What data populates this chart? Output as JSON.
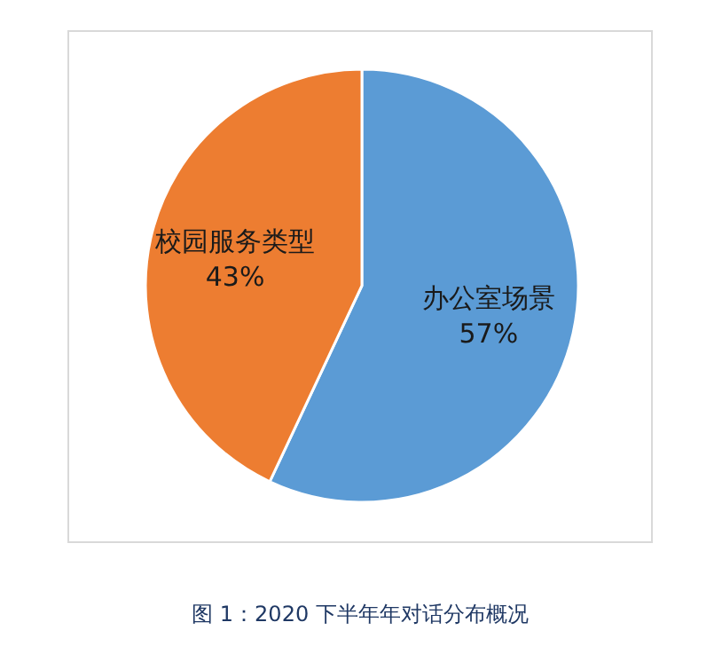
{
  "chart_data": {
    "type": "pie",
    "categories": [
      "办公室场景",
      "校园服务类型"
    ],
    "values": [
      57,
      43
    ],
    "colors": [
      "#5b9bd5",
      "#ed7d31"
    ],
    "value_labels": [
      "57%",
      "43%"
    ],
    "annotations": [
      "图 1：2020 下半年年对话分布概况"
    ]
  }
}
